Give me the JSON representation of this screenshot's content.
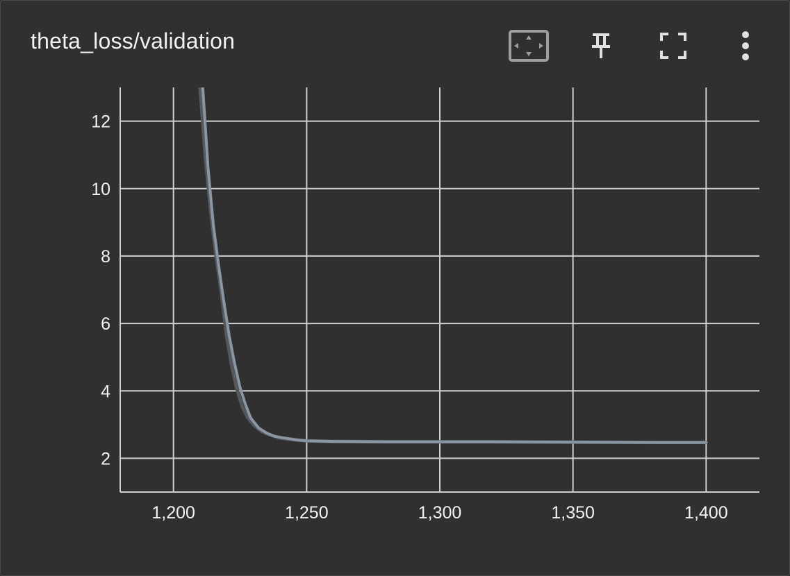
{
  "card": {
    "title": "theta_loss/validation"
  },
  "toolbar": {
    "fit_domain_icon": "fit-to-domain-icon",
    "pin_icon": "pin-icon",
    "fullscreen_icon": "fullscreen-icon",
    "more_icon": "more-vert-icon"
  },
  "colors": {
    "background": "#303030",
    "grid": "#cfcfcf",
    "raw_line": "#55585c",
    "smoothed_line": "#8a96a3",
    "text": "#f2f2f2",
    "icon": "#e0e0e0"
  },
  "chart_data": {
    "type": "line",
    "title": "",
    "xlabel": "",
    "ylabel": "",
    "xlim": [
      1180,
      1420
    ],
    "ylim": [
      1,
      13
    ],
    "x_ticks": [
      1200,
      1250,
      1300,
      1350,
      1400
    ],
    "x_tick_labels": [
      "1,200",
      "1,250",
      "1,300",
      "1,350",
      "1,400"
    ],
    "y_ticks": [
      2,
      4,
      6,
      8,
      10,
      12
    ],
    "y_tick_labels": [
      "2",
      "4",
      "6",
      "8",
      "10",
      "12"
    ],
    "grid": true,
    "series": [
      {
        "x": [
          1210,
          1212,
          1214,
          1216,
          1218,
          1220,
          1222,
          1224,
          1226,
          1228,
          1230,
          1233,
          1236,
          1240,
          1245,
          1250,
          1260,
          1280,
          1300,
          1320,
          1350,
          1380,
          1400
        ],
        "values": [
          13.0,
          10.9,
          9.3,
          8.0,
          6.9,
          5.6,
          4.7,
          4.0,
          3.5,
          3.2,
          3.0,
          2.8,
          2.7,
          2.6,
          2.55,
          2.52,
          2.5,
          2.49,
          2.49,
          2.49,
          2.48,
          2.47,
          2.47
        ]
      },
      {
        "x": [
          1211,
          1213,
          1215,
          1217,
          1219,
          1221,
          1223,
          1225,
          1227,
          1229,
          1232,
          1235,
          1238,
          1242,
          1246,
          1250,
          1260,
          1280,
          1300,
          1320,
          1350,
          1380,
          1400
        ],
        "values": [
          13.0,
          10.6,
          8.9,
          7.7,
          6.6,
          5.6,
          4.8,
          4.1,
          3.6,
          3.2,
          2.9,
          2.75,
          2.65,
          2.6,
          2.55,
          2.52,
          2.5,
          2.49,
          2.49,
          2.49,
          2.48,
          2.47,
          2.47
        ]
      }
    ]
  }
}
